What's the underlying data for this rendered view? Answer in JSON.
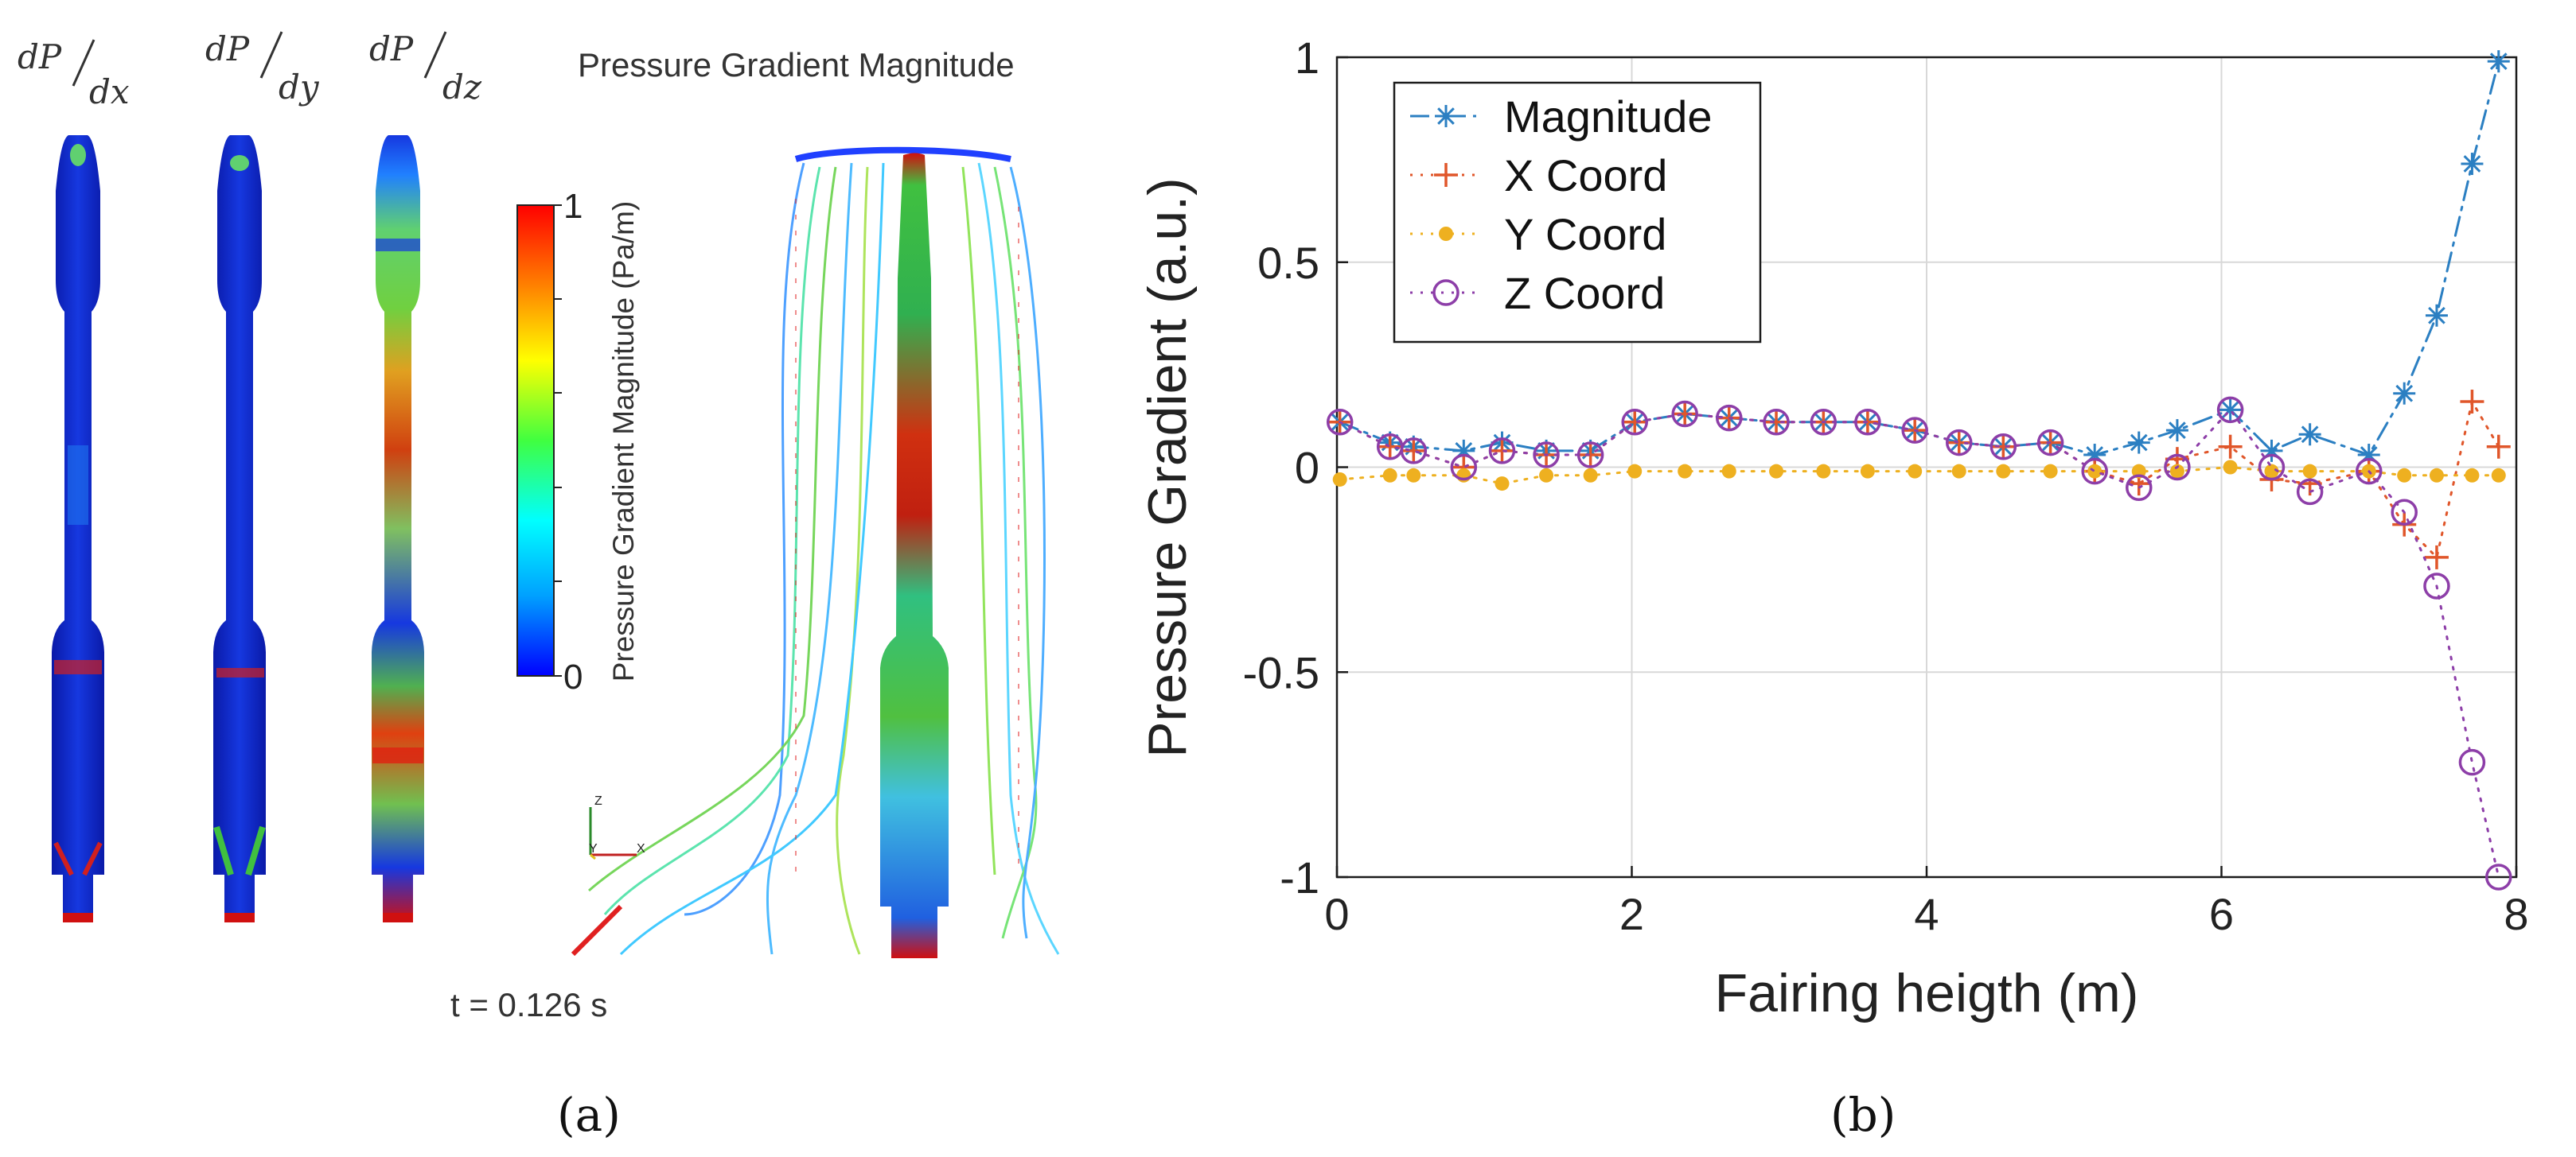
{
  "panel_a": {
    "caption": "(a)",
    "labels": {
      "dx_num": "dP",
      "dx_den": "dx",
      "dy_num": "dP",
      "dy_den": "dy",
      "dz_num": "dP",
      "dz_den": "dz",
      "magnitude_title": "Pressure Gradient Magnitude"
    },
    "colorbar": {
      "title": "Pressure Gradient Magnitude (Pa/m)",
      "max_label": "1",
      "min_label": "0",
      "colors": [
        "#0000ff",
        "#00a0ff",
        "#00ffff",
        "#40ff40",
        "#ffff00",
        "#ff8000",
        "#ff0000"
      ]
    },
    "axis_triad": {
      "z": "Z",
      "y": "Y",
      "x": "X"
    },
    "time_label": "t = 0.126 s"
  },
  "panel_b": {
    "caption": "(b)"
  },
  "chart_data": {
    "type": "line",
    "title": "",
    "xlabel": "Fairing heigth (m)",
    "ylabel": "Pressure Gradient (a.u.)",
    "xlim": [
      0,
      8
    ],
    "ylim": [
      -1,
      1
    ],
    "xticks": [
      0,
      2,
      4,
      6,
      8
    ],
    "yticks": [
      -1,
      -0.5,
      0,
      0.5,
      1
    ],
    "ytick_labels": [
      "-1",
      "-0.5",
      "0",
      "0.5",
      "1"
    ],
    "grid": true,
    "legend_position": "top-left",
    "x": [
      0.02,
      0.36,
      0.52,
      0.86,
      1.12,
      1.42,
      1.72,
      2.02,
      2.36,
      2.66,
      2.98,
      3.3,
      3.6,
      3.92,
      4.22,
      4.52,
      4.84,
      5.14,
      5.44,
      5.7,
      6.06,
      6.34,
      6.6,
      7.0,
      7.24,
      7.46,
      7.7,
      7.88
    ],
    "series": [
      {
        "name": "Magnitude",
        "color": "#2b7fc2",
        "marker": "star",
        "line": "dashdot",
        "values": [
          0.11,
          0.06,
          0.05,
          0.04,
          0.06,
          0.04,
          0.04,
          0.11,
          0.13,
          0.12,
          0.11,
          0.11,
          0.11,
          0.09,
          0.06,
          0.05,
          0.06,
          0.03,
          0.06,
          0.09,
          0.14,
          0.04,
          0.08,
          0.03,
          0.18,
          0.37,
          0.74,
          0.99
        ]
      },
      {
        "name": "X Coord",
        "color": "#e0562a",
        "marker": "plus",
        "line": "dotted",
        "values": [
          0.11,
          0.05,
          0.04,
          0.0,
          0.04,
          0.03,
          0.03,
          0.11,
          0.13,
          0.12,
          0.11,
          0.11,
          0.11,
          0.09,
          0.06,
          0.05,
          0.06,
          -0.01,
          -0.04,
          0.02,
          0.05,
          -0.03,
          -0.04,
          -0.01,
          -0.14,
          -0.22,
          0.16,
          0.05
        ]
      },
      {
        "name": "Y Coord",
        "color": "#eeb020",
        "marker": "dot",
        "line": "dotted",
        "values": [
          -0.03,
          -0.02,
          -0.02,
          -0.02,
          -0.04,
          -0.02,
          -0.02,
          -0.01,
          -0.01,
          -0.01,
          -0.01,
          -0.01,
          -0.01,
          -0.01,
          -0.01,
          -0.01,
          -0.01,
          -0.01,
          -0.01,
          -0.01,
          0.0,
          -0.01,
          -0.01,
          -0.01,
          -0.02,
          -0.02,
          -0.02,
          -0.02
        ]
      },
      {
        "name": "Z Coord",
        "color": "#8d3ea8",
        "marker": "circle",
        "line": "dotted",
        "values": [
          0.11,
          0.05,
          0.04,
          0.0,
          0.04,
          0.03,
          0.03,
          0.11,
          0.13,
          0.12,
          0.11,
          0.11,
          0.11,
          0.09,
          0.06,
          0.05,
          0.06,
          -0.01,
          -0.05,
          0.0,
          0.14,
          0.0,
          -0.06,
          -0.01,
          -0.11,
          -0.29,
          -0.72,
          -1.0
        ]
      }
    ]
  }
}
